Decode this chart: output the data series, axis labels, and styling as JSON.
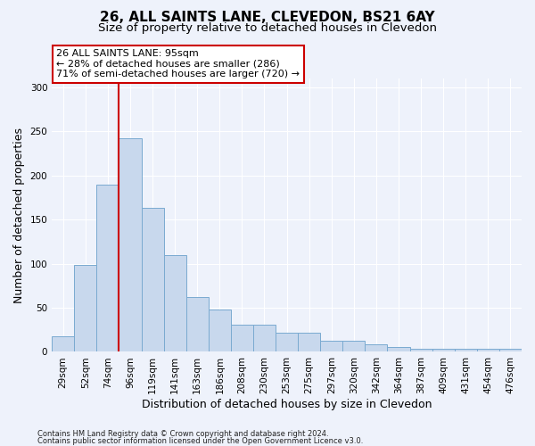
{
  "title": "26, ALL SAINTS LANE, CLEVEDON, BS21 6AY",
  "subtitle": "Size of property relative to detached houses in Clevedon",
  "xlabel": "Distribution of detached houses by size in Clevedon",
  "ylabel": "Number of detached properties",
  "bar_color": "#c8d8ed",
  "bar_edge_color": "#7aaad0",
  "background_color": "#eef2fb",
  "vline_color": "#cc0000",
  "annotation_border_color": "#cc0000",
  "categories": [
    "29sqm",
    "52sqm",
    "74sqm",
    "96sqm",
    "119sqm",
    "141sqm",
    "163sqm",
    "186sqm",
    "208sqm",
    "230sqm",
    "253sqm",
    "275sqm",
    "297sqm",
    "320sqm",
    "342sqm",
    "364sqm",
    "387sqm",
    "409sqm",
    "431sqm",
    "454sqm",
    "476sqm"
  ],
  "values": [
    18,
    99,
    190,
    242,
    163,
    110,
    62,
    48,
    31,
    31,
    22,
    22,
    13,
    13,
    9,
    6,
    4,
    4,
    4,
    4,
    3
  ],
  "ylim": [
    0,
    310
  ],
  "yticks": [
    0,
    50,
    100,
    150,
    200,
    250,
    300
  ],
  "vline_position": 3.0,
  "annotation_text": "26 ALL SAINTS LANE: 95sqm\n← 28% of detached houses are smaller (286)\n71% of semi-detached houses are larger (720) →",
  "footer_line1": "Contains HM Land Registry data © Crown copyright and database right 2024.",
  "footer_line2": "Contains public sector information licensed under the Open Government Licence v3.0.",
  "title_fontsize": 11,
  "subtitle_fontsize": 9.5,
  "tick_fontsize": 7.5,
  "ylabel_fontsize": 9,
  "xlabel_fontsize": 9,
  "annotation_fontsize": 8,
  "footer_fontsize": 6
}
